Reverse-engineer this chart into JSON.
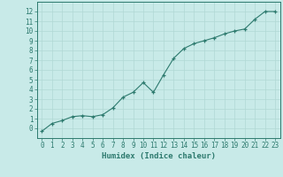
{
  "x": [
    0,
    1,
    2,
    3,
    4,
    5,
    6,
    7,
    8,
    9,
    10,
    11,
    12,
    13,
    14,
    15,
    16,
    17,
    18,
    19,
    20,
    21,
    22,
    23
  ],
  "y": [
    -0.3,
    0.5,
    0.8,
    1.2,
    1.3,
    1.2,
    1.4,
    2.1,
    3.2,
    3.7,
    4.7,
    3.7,
    5.5,
    7.2,
    8.2,
    8.7,
    9.0,
    9.3,
    9.7,
    10.0,
    10.2,
    11.2,
    12.0,
    12.0
  ],
  "xlabel": "Humidex (Indice chaleur)",
  "xlim": [
    -0.5,
    23.5
  ],
  "ylim": [
    -1,
    13
  ],
  "yticks": [
    0,
    1,
    2,
    3,
    4,
    5,
    6,
    7,
    8,
    9,
    10,
    11,
    12
  ],
  "xticks": [
    0,
    1,
    2,
    3,
    4,
    5,
    6,
    7,
    8,
    9,
    10,
    11,
    12,
    13,
    14,
    15,
    16,
    17,
    18,
    19,
    20,
    21,
    22,
    23
  ],
  "line_color": "#2d7a6e",
  "marker_color": "#2d7a6e",
  "bg_color": "#c8eae8",
  "grid_color": "#b0d8d4",
  "axis_color": "#2d7a6e",
  "label_color": "#2d7a6e",
  "font_size": 5.5,
  "xlabel_fontsize": 6.5
}
